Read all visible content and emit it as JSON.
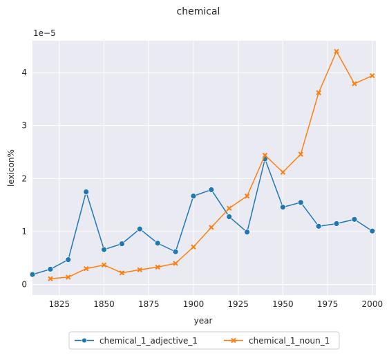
{
  "chart_data": {
    "type": "line",
    "title": "chemical",
    "xlabel": "year",
    "ylabel": "lexicon%",
    "y_scale_label": "1e−5",
    "xlim": [
      1810,
      2002
    ],
    "ylim": [
      -0.2,
      4.6
    ],
    "x_ticks": [
      1825,
      1850,
      1875,
      1900,
      1925,
      1950,
      1975,
      2000
    ],
    "x_tick_labels": [
      "1825",
      "1850",
      "1875",
      "1900",
      "1925",
      "1950",
      "1975",
      "2000"
    ],
    "y_ticks": [
      0,
      1,
      2,
      3,
      4
    ],
    "y_tick_labels": [
      "0",
      "1",
      "2",
      "3",
      "4"
    ],
    "grid": true,
    "legend_placement": "bottom-center, outside",
    "series": [
      {
        "name": "chemical_1_adjective_1",
        "color": "#1f77b4",
        "marker": "circle",
        "x": [
          1810,
          1820,
          1830,
          1840,
          1850,
          1860,
          1870,
          1880,
          1890,
          1900,
          1910,
          1920,
          1930,
          1940,
          1950,
          1960,
          1970,
          1980,
          1990,
          2000
        ],
        "values": [
          0.19,
          0.29,
          0.47,
          1.75,
          0.66,
          0.77,
          1.05,
          0.78,
          0.62,
          1.67,
          1.79,
          1.28,
          0.99,
          2.37,
          1.46,
          1.55,
          1.1,
          1.15,
          1.23,
          1.01
        ]
      },
      {
        "name": "chemical_1_noun_1",
        "color": "#ff7f0e",
        "marker": "x",
        "x": [
          1820,
          1830,
          1840,
          1850,
          1860,
          1870,
          1880,
          1890,
          1900,
          1910,
          1920,
          1930,
          1940,
          1950,
          1960,
          1970,
          1980,
          1990,
          2000
        ],
        "values": [
          0.11,
          0.14,
          0.3,
          0.37,
          0.22,
          0.28,
          0.33,
          0.4,
          0.71,
          1.08,
          1.44,
          1.67,
          2.44,
          2.12,
          2.46,
          3.62,
          4.4,
          3.79,
          3.94
        ]
      }
    ]
  }
}
